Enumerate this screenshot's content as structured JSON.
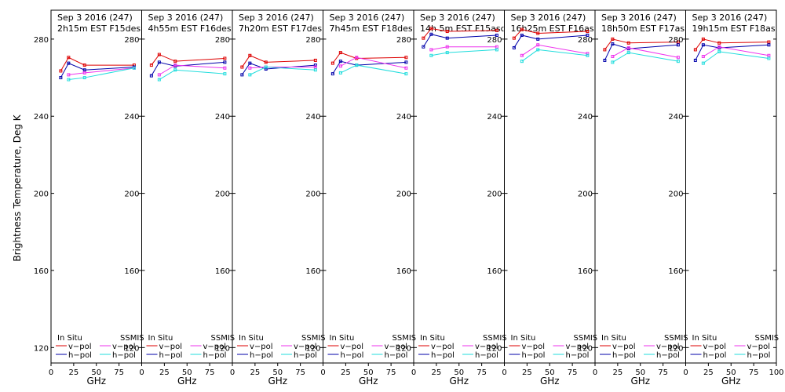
{
  "ylabel": "Brightness Temperature, Deg K",
  "xlabel": "GHz",
  "ylim": [
    112,
    295
  ],
  "yticks": [
    120,
    160,
    200,
    240,
    280
  ],
  "xlim": [
    0,
    100
  ],
  "xticks": [
    0,
    25,
    50,
    75,
    100
  ],
  "xtick_labels": [
    "0",
    "25",
    "50",
    "75",
    "100"
  ],
  "legend": {
    "insitu_title": "In Situ",
    "ssmis_title": "SSMIS",
    "vpol": "v−pol",
    "hpol": "h−pol"
  },
  "colors": {
    "insitu_v": "#dd0000",
    "insitu_h": "#0000aa",
    "ssmis_v": "#ee33ee",
    "ssmis_h": "#22dddd"
  },
  "chart_data": {
    "type": "line",
    "x": [
      10.7,
      19.35,
      37,
      91.66
    ],
    "panels": [
      {
        "title_line1": "Sep  3 2016 (247)",
        "title_line2": "2h15m  EST  F15desc",
        "series": [
          {
            "name": "In Situ v-pol",
            "values": [
              263.5,
              270.5,
              266.5,
              266.5
            ]
          },
          {
            "name": "In Situ h-pol",
            "values": [
              260.0,
              267.5,
              264.0,
              265.5
            ]
          },
          {
            "name": "SSMIS v-pol",
            "values": null,
            "values_partial": [
              null,
              261.5,
              262.5,
              265.0
            ]
          },
          {
            "name": "SSMIS h-pol",
            "values": [
              null,
              259.0,
              260.0,
              265.0
            ]
          }
        ]
      },
      {
        "title_line1": "Sep  3 2016 (247)",
        "title_line2": "4h55m  EST  F16desc",
        "series": [
          {
            "name": "In Situ v-pol",
            "values": [
              266.5,
              272.0,
              268.5,
              270.0
            ]
          },
          {
            "name": "In Situ h-pol",
            "values": [
              261.0,
              268.0,
              266.0,
              268.0
            ]
          },
          {
            "name": "SSMIS v-pol",
            "values": [
              null,
              261.5,
              266.5,
              265.0
            ]
          },
          {
            "name": "SSMIS h-pol",
            "values": [
              null,
              259.0,
              264.0,
              262.0
            ]
          }
        ]
      },
      {
        "title_line1": "Sep  3 2016 (247)",
        "title_line2": "7h20m  EST  F17desc",
        "series": [
          {
            "name": "In Situ v-pol",
            "values": [
              265.5,
              271.5,
              268.0,
              269.0
            ]
          },
          {
            "name": "In Situ h-pol",
            "values": [
              261.5,
              267.5,
              264.5,
              266.5
            ]
          },
          {
            "name": "SSMIS v-pol",
            "values": [
              null,
              265.0,
              265.5,
              265.5
            ]
          },
          {
            "name": "SSMIS h-pol",
            "values": [
              null,
              261.5,
              265.5,
              264.0
            ]
          }
        ]
      },
      {
        "title_line1": "Sep  3 2016 (247)",
        "title_line2": "7h45m  EST  F18desc",
        "series": [
          {
            "name": "In Situ v-pol",
            "values": [
              267.5,
              273.0,
              270.0,
              270.5
            ]
          },
          {
            "name": "In Situ h-pol",
            "values": [
              262.0,
              268.5,
              266.5,
              268.0
            ]
          },
          {
            "name": "SSMIS v-pol",
            "values": [
              null,
              266.0,
              270.5,
              265.0
            ]
          },
          {
            "name": "SSMIS h-pol",
            "values": [
              null,
              262.5,
              266.5,
              262.0
            ]
          }
        ]
      },
      {
        "title_line1": "Sep  3 2016 (247)",
        "title_line2": "14h 5m  EST  F15asc",
        "series": [
          {
            "name": "In Situ v-pol",
            "values": [
              280.5,
              285.5,
              284.0,
              284.5
            ]
          },
          {
            "name": "In Situ h-pol",
            "values": [
              276.0,
              282.5,
              280.5,
              282.0
            ]
          },
          {
            "name": "SSMIS v-pol",
            "values": [
              null,
              274.5,
              276.0,
              276.0
            ]
          },
          {
            "name": "SSMIS h-pol",
            "values": [
              null,
              271.5,
              273.0,
              274.5
            ]
          }
        ]
      },
      {
        "title_line1": "Sep  3 2016 (247)",
        "title_line2": "16h25m  EST  F16asc",
        "series": [
          {
            "name": "In Situ v-pol",
            "values": [
              280.5,
              285.0,
              283.0,
              284.0
            ]
          },
          {
            "name": "In Situ h-pol",
            "values": [
              275.5,
              282.0,
              280.0,
              282.0
            ]
          },
          {
            "name": "SSMIS v-pol",
            "values": [
              null,
              271.5,
              277.0,
              272.5
            ]
          },
          {
            "name": "SSMIS h-pol",
            "values": [
              null,
              268.5,
              274.5,
              271.5
            ]
          }
        ]
      },
      {
        "title_line1": "Sep  3 2016 (247)",
        "title_line2": "18h50m  EST  F17asc",
        "series": [
          {
            "name": "In Situ v-pol",
            "values": [
              274.5,
              280.0,
              278.0,
              278.5
            ]
          },
          {
            "name": "In Situ h-pol",
            "values": [
              269.0,
              277.5,
              275.0,
              277.0
            ]
          },
          {
            "name": "SSMIS v-pol",
            "values": [
              null,
              271.0,
              275.5,
              270.5
            ]
          },
          {
            "name": "SSMIS h-pol",
            "values": [
              null,
              268.0,
              273.0,
              268.5
            ]
          }
        ]
      },
      {
        "title_line1": "Sep  3 2016 (247)",
        "title_line2": "19h15m  EST  F18asc",
        "series": [
          {
            "name": "In Situ v-pol",
            "values": [
              274.5,
              280.0,
              278.0,
              278.5
            ]
          },
          {
            "name": "In Situ h-pol",
            "values": [
              269.0,
              277.0,
              275.5,
              277.0
            ]
          },
          {
            "name": "SSMIS v-pol",
            "values": [
              null,
              271.0,
              276.0,
              271.5
            ]
          },
          {
            "name": "SSMIS h-pol",
            "values": [
              null,
              267.5,
              273.5,
              270.0
            ]
          }
        ]
      }
    ]
  }
}
